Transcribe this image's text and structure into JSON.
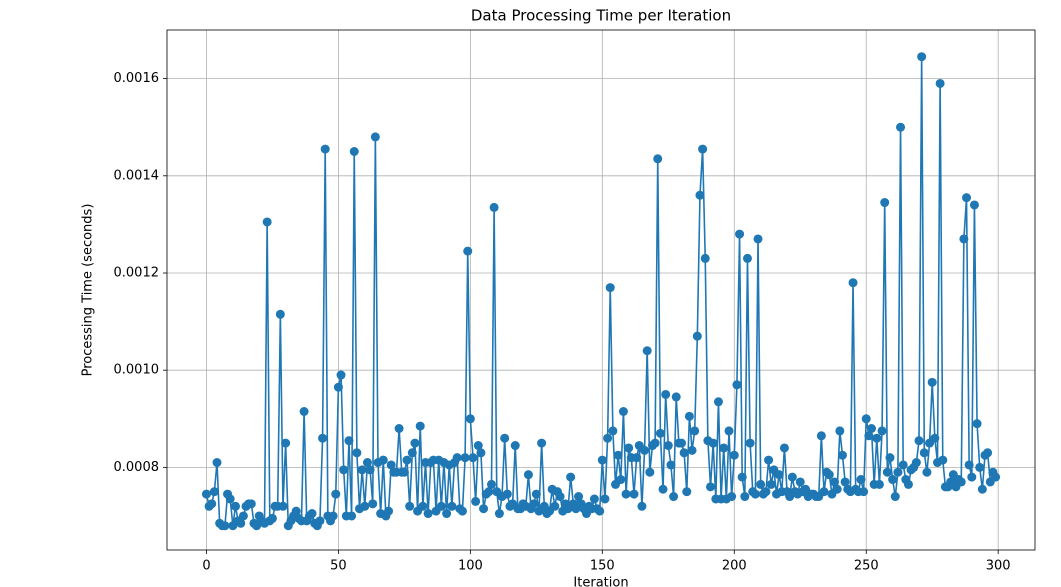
{
  "chart_data": {
    "type": "line",
    "title": "Data Processing Time per Iteration",
    "x_label": "Iteration",
    "y_label": "Processing Time (seconds)",
    "grid": true,
    "xlim": [
      -14.95,
      313.95
    ],
    "ylim": [
      0.00063,
      0.0017
    ],
    "xticks": [
      0,
      50,
      100,
      150,
      200,
      250,
      300
    ],
    "yticks": [
      0.0008,
      {
        "value": 0.001,
        "label": "0.0010"
      },
      0.0012,
      0.0014,
      0.0016
    ],
    "x": [
      0,
      1,
      2,
      3,
      4,
      5,
      6,
      7,
      8,
      9,
      10,
      11,
      12,
      13,
      14,
      15,
      16,
      17,
      18,
      19,
      20,
      21,
      22,
      23,
      24,
      25,
      26,
      27,
      28,
      29,
      30,
      31,
      32,
      33,
      34,
      35,
      36,
      37,
      38,
      39,
      40,
      41,
      42,
      43,
      44,
      45,
      46,
      47,
      48,
      49,
      50,
      51,
      52,
      53,
      54,
      55,
      56,
      57,
      58,
      59,
      60,
      61,
      62,
      63,
      64,
      65,
      66,
      67,
      68,
      69,
      70,
      71,
      72,
      73,
      74,
      75,
      76,
      77,
      78,
      79,
      80,
      81,
      82,
      83,
      84,
      85,
      86,
      87,
      88,
      89,
      90,
      91,
      92,
      93,
      94,
      95,
      96,
      97,
      98,
      99,
      100,
      101,
      102,
      103,
      104,
      105,
      106,
      107,
      108,
      109,
      110,
      111,
      112,
      113,
      114,
      115,
      116,
      117,
      118,
      119,
      120,
      121,
      122,
      123,
      124,
      125,
      126,
      127,
      128,
      129,
      130,
      131,
      132,
      133,
      134,
      135,
      136,
      137,
      138,
      139,
      140,
      141,
      142,
      143,
      144,
      145,
      146,
      147,
      148,
      149,
      150,
      151,
      152,
      153,
      154,
      155,
      156,
      157,
      158,
      159,
      160,
      161,
      162,
      163,
      164,
      165,
      166,
      167,
      168,
      169,
      170,
      171,
      172,
      173,
      174,
      175,
      176,
      177,
      178,
      179,
      180,
      181,
      182,
      183,
      184,
      185,
      186,
      187,
      188,
      189,
      190,
      191,
      192,
      193,
      194,
      195,
      196,
      197,
      198,
      199,
      200,
      201,
      202,
      203,
      204,
      205,
      206,
      207,
      208,
      209,
      210,
      211,
      212,
      213,
      214,
      215,
      216,
      217,
      218,
      219,
      220,
      221,
      222,
      223,
      224,
      225,
      226,
      227,
      228,
      229,
      230,
      231,
      232,
      233,
      234,
      235,
      236,
      237,
      238,
      239,
      240,
      241,
      242,
      243,
      244,
      245,
      246,
      247,
      248,
      249,
      250,
      251,
      252,
      253,
      254,
      255,
      256,
      257,
      258,
      259,
      260,
      261,
      262,
      263,
      264,
      265,
      266,
      267,
      268,
      269,
      270,
      271,
      272,
      273,
      274,
      275,
      276,
      277,
      278,
      279,
      280,
      281,
      282,
      283,
      284,
      285,
      286,
      287,
      288,
      289,
      290,
      291,
      292,
      293,
      294,
      295,
      296,
      297,
      298,
      299
    ],
    "series": [
      {
        "color": "#1f77b4",
        "values": [
          0.000745,
          0.00072,
          0.000725,
          0.00075,
          0.00081,
          0.000685,
          0.00068,
          0.00068,
          0.000745,
          0.000735,
          0.00068,
          0.00072,
          0.00069,
          0.000685,
          0.0007,
          0.00072,
          0.000725,
          0.000725,
          0.000685,
          0.00068,
          0.0007,
          0.00069,
          0.000685,
          0.001305,
          0.00069,
          0.000695,
          0.00072,
          0.00072,
          0.001115,
          0.00072,
          0.00085,
          0.00068,
          0.00069,
          0.0007,
          0.00071,
          0.000695,
          0.00069,
          0.000915,
          0.00069,
          0.0007,
          0.000705,
          0.000685,
          0.00068,
          0.00069,
          0.00086,
          0.001455,
          0.0007,
          0.00069,
          0.0007,
          0.000745,
          0.000965,
          0.00099,
          0.000795,
          0.0007,
          0.000855,
          0.0007,
          0.00145,
          0.00083,
          0.000715,
          0.000795,
          0.00072,
          0.00081,
          0.000795,
          0.000725,
          0.00148,
          0.00081,
          0.000705,
          0.000815,
          0.0007,
          0.00071,
          0.000805,
          0.00079,
          0.00079,
          0.00088,
          0.00079,
          0.00079,
          0.000815,
          0.00072,
          0.00083,
          0.00085,
          0.00071,
          0.000885,
          0.00072,
          0.00081,
          0.000705,
          0.00081,
          0.000815,
          0.00071,
          0.000815,
          0.00072,
          0.00081,
          0.000705,
          0.000805,
          0.00072,
          0.00081,
          0.00082,
          0.000715,
          0.00071,
          0.00082,
          0.001245,
          0.0009,
          0.00082,
          0.00073,
          0.000845,
          0.00083,
          0.000715,
          0.000745,
          0.00075,
          0.000765,
          0.001335,
          0.00075,
          0.000705,
          0.00074,
          0.00086,
          0.000745,
          0.00072,
          0.000725,
          0.000845,
          0.000715,
          0.000715,
          0.000725,
          0.00072,
          0.000785,
          0.000715,
          0.000725,
          0.000745,
          0.00071,
          0.00085,
          0.00072,
          0.000705,
          0.00071,
          0.000755,
          0.00072,
          0.00075,
          0.00074,
          0.00071,
          0.000725,
          0.000715,
          0.00078,
          0.000725,
          0.000715,
          0.00074,
          0.000725,
          0.000715,
          0.000705,
          0.00072,
          0.000715,
          0.000735,
          0.000715,
          0.00071,
          0.000815,
          0.000735,
          0.00086,
          0.00117,
          0.000875,
          0.000765,
          0.000825,
          0.000775,
          0.000915,
          0.000745,
          0.00084,
          0.00082,
          0.000745,
          0.00082,
          0.000845,
          0.00072,
          0.000835,
          0.00104,
          0.00079,
          0.000845,
          0.00085,
          0.001435,
          0.00087,
          0.000755,
          0.00095,
          0.000845,
          0.000805,
          0.00074,
          0.000945,
          0.00085,
          0.00085,
          0.00083,
          0.00075,
          0.000905,
          0.000835,
          0.000875,
          0.00107,
          0.00136,
          0.001455,
          0.00123,
          0.000855,
          0.00076,
          0.00085,
          0.000735,
          0.000935,
          0.000735,
          0.00084,
          0.000735,
          0.000875,
          0.00074,
          0.000825,
          0.00097,
          0.00128,
          0.00078,
          0.00074,
          0.00123,
          0.00085,
          0.00075,
          0.000745,
          0.00127,
          0.000765,
          0.000745,
          0.00075,
          0.000815,
          0.000765,
          0.000795,
          0.000745,
          0.000785,
          0.00075,
          0.00084,
          0.00075,
          0.00074,
          0.00078,
          0.00075,
          0.000745,
          0.00077,
          0.00075,
          0.000755,
          0.00074,
          0.000745,
          0.000745,
          0.00074,
          0.00074,
          0.000865,
          0.00075,
          0.00079,
          0.000785,
          0.000745,
          0.00077,
          0.000755,
          0.000875,
          0.000825,
          0.00077,
          0.000755,
          0.00075,
          0.00118,
          0.000755,
          0.00075,
          0.000775,
          0.00075,
          0.0009,
          0.000865,
          0.00088,
          0.000765,
          0.00086,
          0.000765,
          0.000875,
          0.001345,
          0.00079,
          0.00082,
          0.000775,
          0.00074,
          0.00079,
          0.0015,
          0.000805,
          0.000775,
          0.000765,
          0.000795,
          0.0008,
          0.00081,
          0.000855,
          0.001645,
          0.00083,
          0.00079,
          0.00085,
          0.000975,
          0.00086,
          0.00081,
          0.00159,
          0.000815,
          0.00076,
          0.00076,
          0.00077,
          0.000785,
          0.00076,
          0.000775,
          0.00077,
          0.00127,
          0.001355,
          0.000805,
          0.00078,
          0.00134,
          0.00089,
          0.0008,
          0.000755,
          0.000825,
          0.00083,
          0.00077,
          0.00079,
          0.00078
        ]
      }
    ]
  }
}
